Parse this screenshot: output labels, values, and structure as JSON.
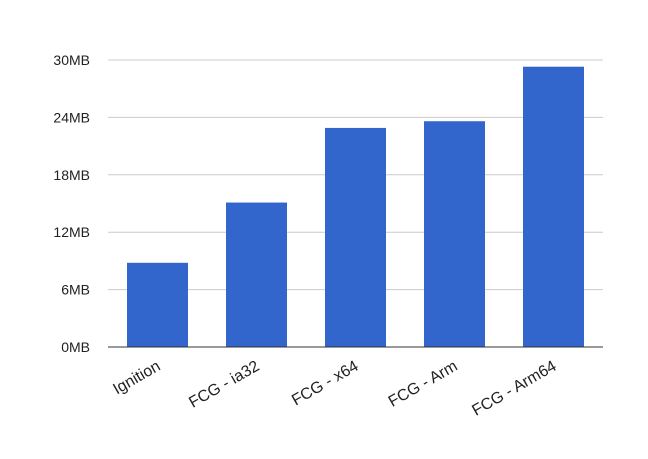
{
  "chart_data": {
    "type": "bar",
    "title": "",
    "xlabel": "",
    "ylabel": "",
    "categories": [
      "Ignition",
      "FCG - ia32",
      "FCG - x64",
      "FCG - Arm",
      "FCG - Arm64"
    ],
    "values": [
      8.8,
      15.1,
      22.9,
      23.6,
      29.3
    ],
    "unit": "MB",
    "ylim": [
      0,
      30
    ],
    "yticks": [
      0,
      6,
      12,
      18,
      24,
      30
    ],
    "ytick_labels": [
      "0MB",
      "6MB",
      "12MB",
      "18MB",
      "24MB",
      "30MB"
    ],
    "grid": true,
    "legend": "none",
    "bar_color": "#3366cc",
    "grid_color": "#cccccc",
    "axis_color": "#333333",
    "label_color": "#222222"
  }
}
